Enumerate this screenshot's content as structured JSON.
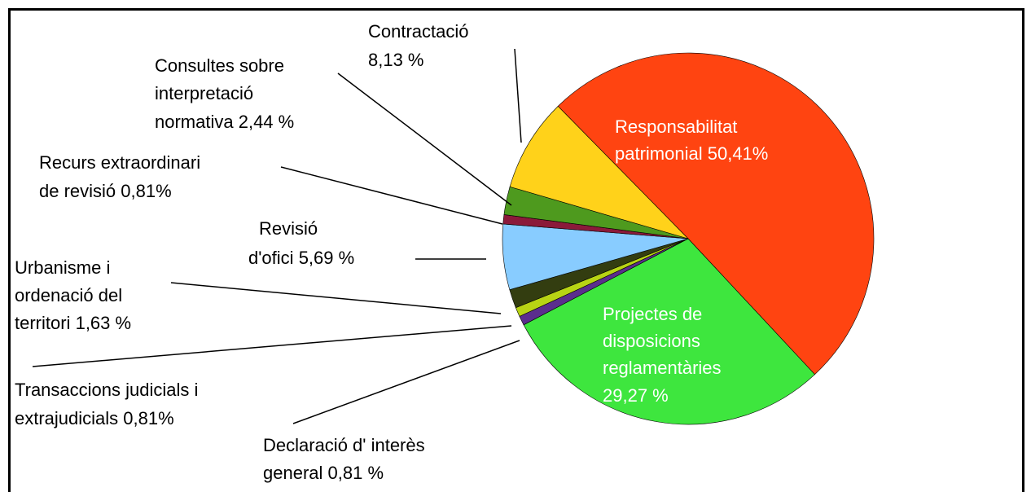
{
  "chart_data": {
    "type": "pie",
    "categories": [
      [
        "Responsabilitat",
        "patrimonial"
      ],
      [
        "Projectes de",
        "disposicions",
        "reglamentàries"
      ],
      [
        "Declaració d' interès",
        "general"
      ],
      [
        "Transaccions judicials i",
        "extrajudicials"
      ],
      [
        "Urbanisme i",
        "ordenació del",
        "territori"
      ],
      [
        "Revisió",
        "d'ofici"
      ],
      [
        "Recurs extraordinari",
        "de revisió"
      ],
      [
        "Consultes sobre",
        "interpretació",
        "normativa"
      ],
      [
        "Contractació"
      ]
    ],
    "values": [
      50.41,
      29.27,
      0.81,
      0.81,
      1.63,
      5.69,
      0.81,
      2.44,
      8.13
    ],
    "value_labels": [
      "50,41%",
      "29,27 %",
      "0,81 %",
      "0,81%",
      "1,63 %",
      "5,69 %",
      "0,81%",
      "2,44 %",
      "8,13 %"
    ],
    "colors": [
      "#ff4411",
      "#3ee63e",
      "#5b2d8e",
      "#b8d414",
      "#333d10",
      "#88ccff",
      "#8b1a3a",
      "#4e9a1e",
      "#ffd21a"
    ]
  }
}
